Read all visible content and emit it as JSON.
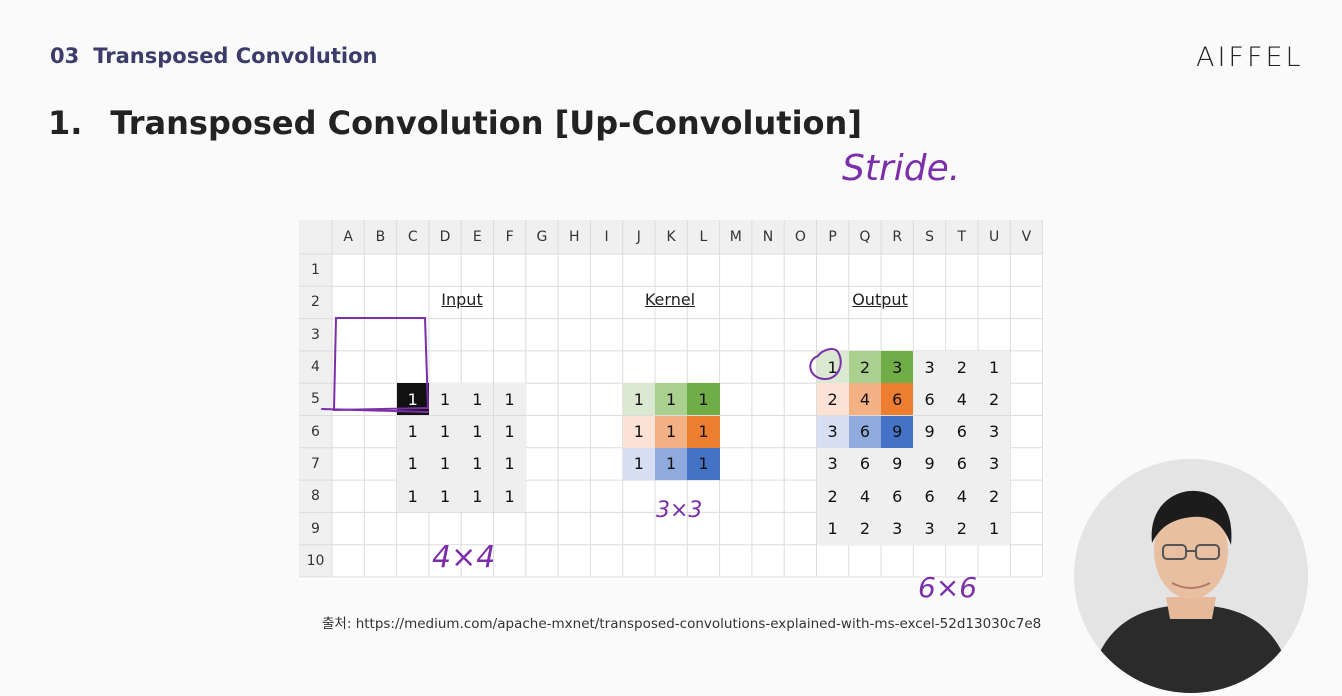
{
  "header": {
    "section_number": "03",
    "section_title": "Transposed Convolution",
    "brand": "AIFFEL"
  },
  "slide_title": {
    "number": "1.",
    "text": "Transposed Convolution [Up-Convolution]"
  },
  "annotations": {
    "stride": "Stride.",
    "input_size": "4×4",
    "kernel_size": "3×3",
    "output_size": "6×6"
  },
  "spreadsheet": {
    "columns": [
      "A",
      "B",
      "C",
      "D",
      "E",
      "F",
      "G",
      "H",
      "I",
      "J",
      "K",
      "L",
      "M",
      "N",
      "O",
      "P",
      "Q",
      "R",
      "S",
      "T",
      "U",
      "V"
    ],
    "rows": [
      "1",
      "2",
      "3",
      "4",
      "5",
      "6",
      "7",
      "8",
      "9",
      "10"
    ],
    "input": {
      "label": "Input",
      "values": [
        [
          1,
          1,
          1,
          1
        ],
        [
          1,
          1,
          1,
          1
        ],
        [
          1,
          1,
          1,
          1
        ],
        [
          1,
          1,
          1,
          1
        ]
      ]
    },
    "kernel": {
      "label": "Kernel",
      "values": [
        [
          1,
          1,
          1
        ],
        [
          1,
          1,
          1
        ],
        [
          1,
          1,
          1
        ]
      ]
    },
    "output": {
      "label": "Output",
      "values": [
        [
          1,
          2,
          3,
          3,
          2,
          1
        ],
        [
          2,
          4,
          6,
          6,
          4,
          2
        ],
        [
          3,
          6,
          9,
          9,
          6,
          3
        ],
        [
          3,
          6,
          9,
          9,
          6,
          3
        ],
        [
          2,
          4,
          6,
          6,
          4,
          2
        ],
        [
          1,
          2,
          3,
          3,
          2,
          1
        ]
      ]
    }
  },
  "colors": {
    "green_light": "#dbe9d2",
    "green_mid": "#a9d08e",
    "green_dark": "#70ad47",
    "orange_light": "#fbe2d5",
    "orange_mid": "#f4b183",
    "orange_dark": "#ed7d31",
    "blue_light": "#d6e0f2",
    "blue_mid": "#8faadc",
    "blue_dark": "#4472c4",
    "highlight_black": "#111111",
    "pen_purple": "#7b2fa8"
  },
  "source": {
    "prefix": "출처:",
    "url": "https://medium.com/apache-mxnet/transposed-convolutions-explained-with-ms-excel-52d13030c7e8"
  }
}
